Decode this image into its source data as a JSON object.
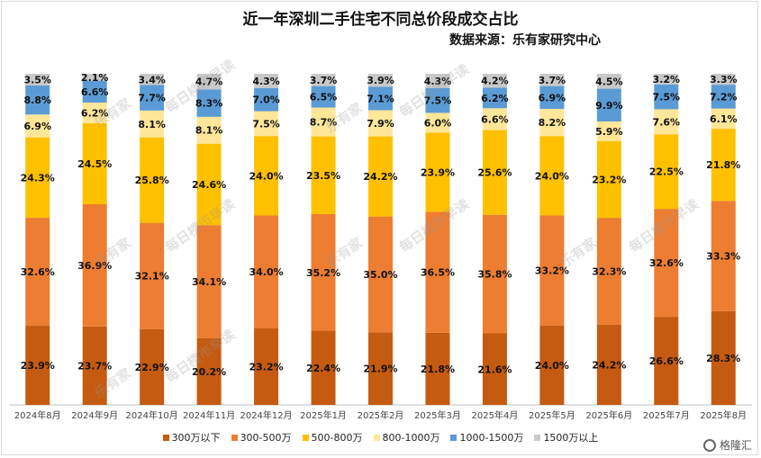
{
  "title": "近一年深圳二手住宅不同总价段成交占比",
  "source": "数据来源：乐有家研究中心",
  "watermark": {
    "text1": "乐有家",
    "text2": "每日楼市早读"
  },
  "brand": {
    "text": "格隆汇"
  },
  "chart_data": {
    "type": "bar",
    "stacked": true,
    "percent": true,
    "ylim": [
      0,
      100
    ],
    "grid": false,
    "legend_position": "bottom",
    "categories": [
      "2024年8月",
      "2024年9月",
      "2024年10月",
      "2024年11月",
      "2024年12月",
      "2025年1月",
      "2025年2月",
      "2025年3月",
      "2025年4月",
      "2025年5月",
      "2025年6月",
      "2025年7月",
      "2025年8月"
    ],
    "series": [
      {
        "name": "300万以下",
        "color": "#c55a11",
        "values": [
          23.9,
          23.7,
          22.9,
          20.2,
          23.2,
          22.4,
          21.9,
          21.8,
          21.6,
          24.0,
          24.2,
          26.6,
          28.3
        ]
      },
      {
        "name": "300-500万",
        "color": "#ed7d31",
        "values": [
          32.6,
          36.9,
          32.1,
          34.1,
          34.0,
          35.2,
          35.0,
          36.5,
          35.8,
          33.2,
          32.3,
          32.6,
          33.3
        ]
      },
      {
        "name": "500-800万",
        "color": "#ffc000",
        "values": [
          24.3,
          24.5,
          25.8,
          24.6,
          24.0,
          23.5,
          24.2,
          23.9,
          25.6,
          24.0,
          23.2,
          22.5,
          21.8
        ]
      },
      {
        "name": "800-1000万",
        "color": "#ffe699",
        "values": [
          6.9,
          6.2,
          8.1,
          8.1,
          7.5,
          8.7,
          7.9,
          6.0,
          6.6,
          8.2,
          5.9,
          7.6,
          6.1
        ]
      },
      {
        "name": "1000-1500万",
        "color": "#5b9bd5",
        "values": [
          8.8,
          6.6,
          7.7,
          8.3,
          7.0,
          6.5,
          7.1,
          7.5,
          6.2,
          6.9,
          9.9,
          7.5,
          7.2
        ]
      },
      {
        "name": "1500万以上",
        "color": "#c9c9c9",
        "values": [
          3.5,
          2.1,
          3.4,
          4.7,
          4.3,
          3.7,
          3.9,
          4.3,
          4.2,
          3.7,
          4.5,
          3.2,
          3.3
        ]
      }
    ]
  }
}
